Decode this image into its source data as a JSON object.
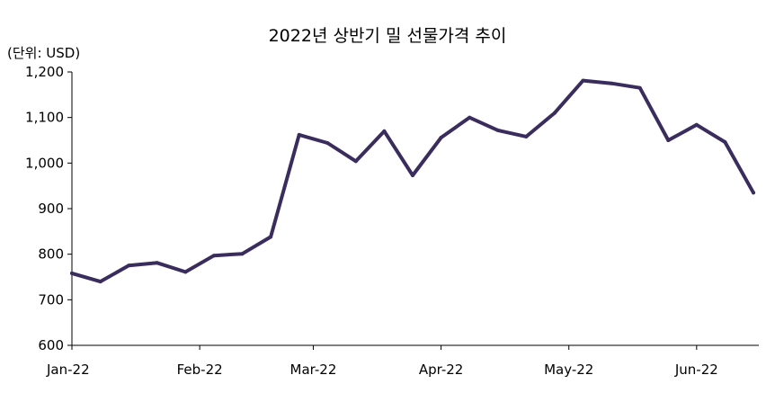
{
  "chart_data": {
    "type": "line",
    "title": "2022년 상반기 밀 선물가격 추이",
    "unit_label": "(단위: USD)",
    "xlabel": "",
    "ylabel": "",
    "ylim": [
      600,
      1200
    ],
    "yticks": [
      600,
      700,
      800,
      900,
      1000,
      1100,
      1200
    ],
    "ytick_labels": [
      "600",
      "700",
      "800",
      "900",
      "1,000",
      "1,100",
      "1,200"
    ],
    "xticks": [
      {
        "label": "Jan-22",
        "index": 0
      },
      {
        "label": "Feb-22",
        "index": 4.5
      },
      {
        "label": "Mar-22",
        "index": 8.5
      },
      {
        "label": "Apr-22",
        "index": 13
      },
      {
        "label": "May-22",
        "index": 17.5
      },
      {
        "label": "Jun-22",
        "index": 22
      }
    ],
    "grid": false,
    "line_color": "#3a2d5e",
    "series": [
      {
        "name": "",
        "values": [
          758,
          740,
          775,
          781,
          761,
          797,
          801,
          838,
          1062,
          1044,
          1004,
          1070,
          973,
          1056,
          1100,
          1072,
          1058,
          1110,
          1181,
          1175,
          1165,
          1050,
          1084,
          1046,
          935
        ]
      }
    ]
  }
}
